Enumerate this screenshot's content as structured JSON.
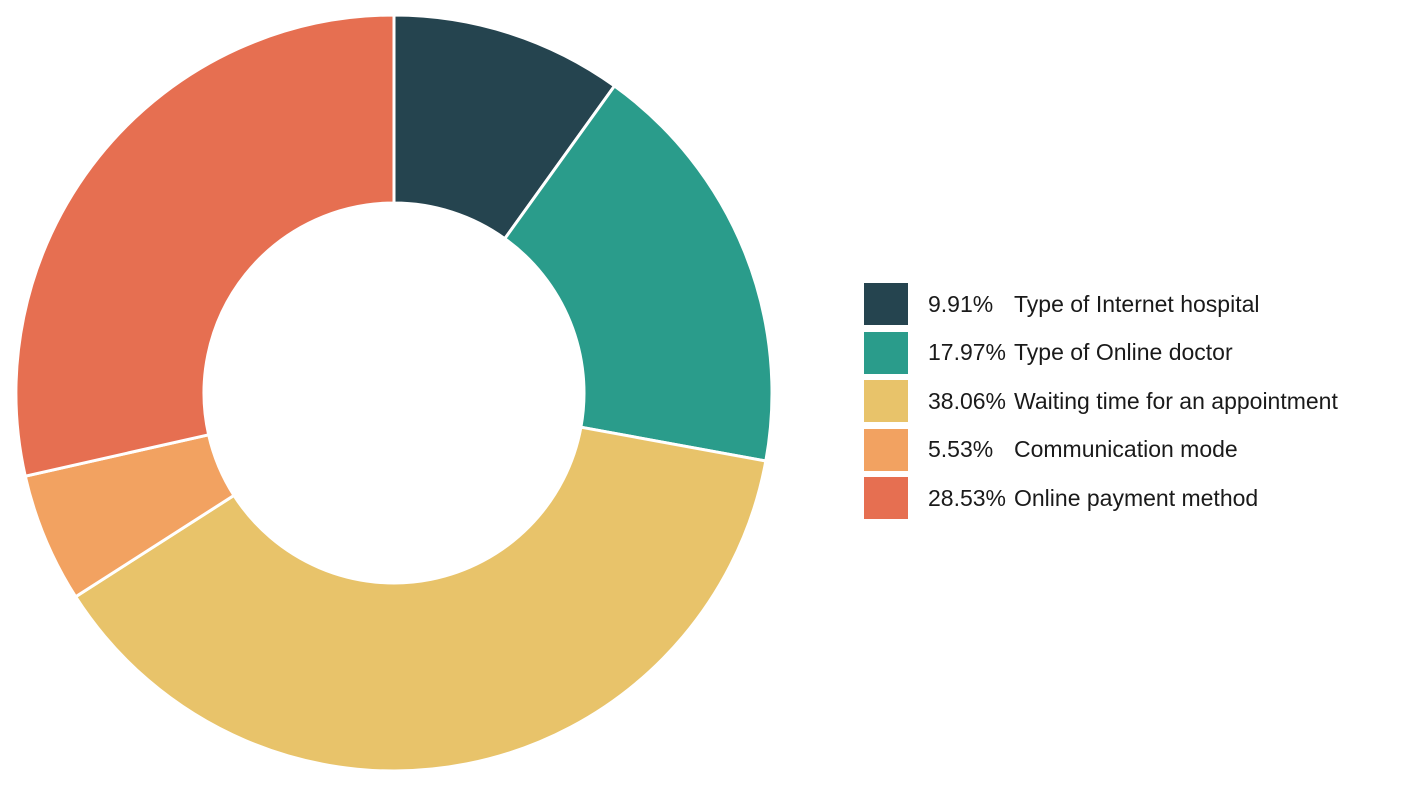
{
  "chart_data": {
    "type": "pie",
    "variant": "donut",
    "start_angle_deg": 0,
    "direction": "clockwise",
    "legend_position": "right",
    "slices": [
      {
        "percent_label": "9.91%",
        "label": "Type of Internet hospital",
        "value": 9.91,
        "color": "#25444f"
      },
      {
        "percent_label": "17.97%",
        "label": "Type of Online doctor",
        "value": 17.97,
        "color": "#2a9c8b"
      },
      {
        "percent_label": "38.06%",
        "label": "Waiting time for an appointment",
        "value": 38.06,
        "color": "#e8c36a"
      },
      {
        "percent_label": "5.53%",
        "label": "Communication mode",
        "value": 5.53,
        "color": "#f2a261"
      },
      {
        "percent_label": "28.53%",
        "label": "Online payment method",
        "value": 28.53,
        "color": "#e66f51"
      }
    ]
  }
}
